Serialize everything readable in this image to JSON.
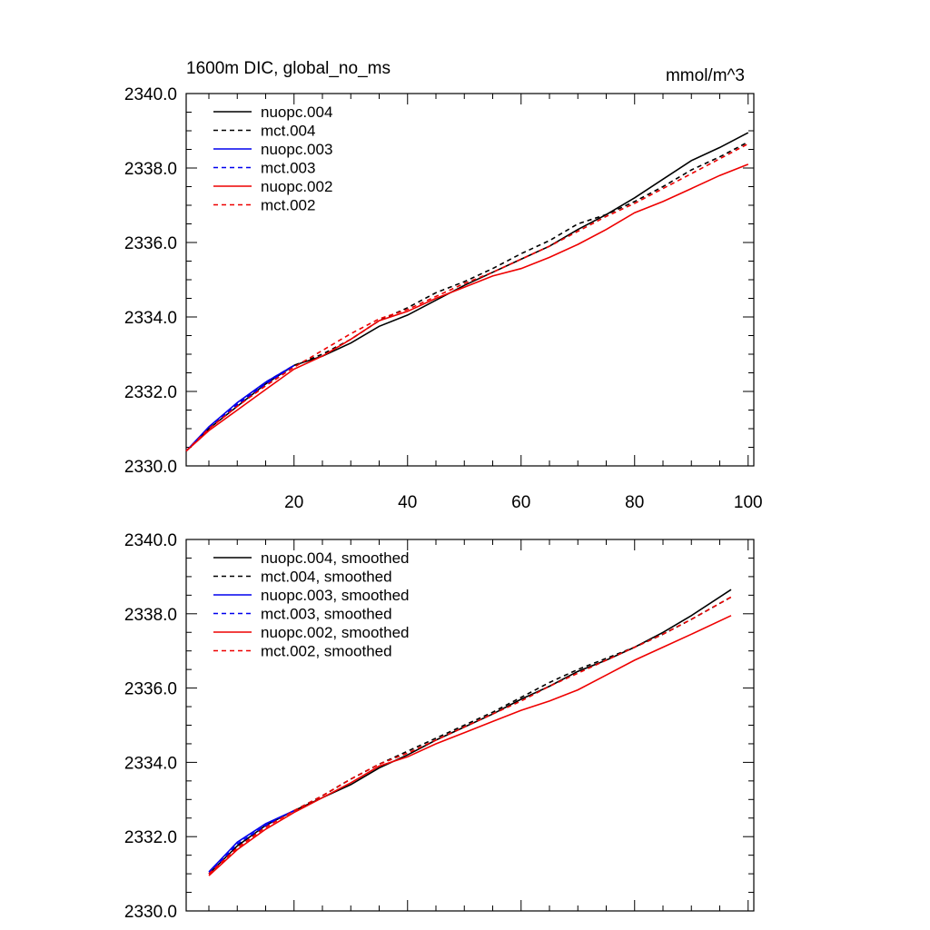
{
  "chart_data": [
    {
      "type": "line",
      "title": "1600m DIC, global_no_ms",
      "units": "mmol/m^3",
      "xlim": [
        1,
        101
      ],
      "ylim": [
        2330,
        2340
      ],
      "xticks": [
        20,
        40,
        60,
        80,
        100
      ],
      "xtick_labels": [
        "20",
        "40",
        "60",
        "80",
        "100"
      ],
      "yticks": [
        2330,
        2332,
        2334,
        2336,
        2338,
        2340
      ],
      "ytick_labels": [
        "2330.0",
        "2332.0",
        "2334.0",
        "2336.0",
        "2338.0",
        "2340.0"
      ],
      "legend_position": "top-left",
      "series": [
        {
          "name": "nuopc.004",
          "color": "#000000",
          "dash": "solid",
          "x": [
            1,
            5,
            10,
            15,
            20,
            25,
            30,
            35,
            40,
            45,
            50,
            55,
            60,
            65,
            70,
            75,
            80,
            85,
            90,
            95,
            100
          ],
          "y": [
            2330.4,
            2331.0,
            2331.6,
            2332.2,
            2332.7,
            2332.95,
            2333.3,
            2333.75,
            2334.05,
            2334.45,
            2334.85,
            2335.2,
            2335.55,
            2335.9,
            2336.35,
            2336.75,
            2337.2,
            2337.7,
            2338.2,
            2338.55,
            2338.95
          ]
        },
        {
          "name": "mct.004",
          "color": "#000000",
          "dash": "dashed",
          "x": [
            1,
            5,
            10,
            15,
            20,
            25,
            30,
            35,
            40,
            45,
            50,
            55,
            60,
            65,
            70,
            75,
            80,
            85,
            90,
            95,
            100
          ],
          "y": [
            2330.4,
            2331.0,
            2331.65,
            2332.25,
            2332.7,
            2333.0,
            2333.4,
            2333.9,
            2334.25,
            2334.65,
            2334.95,
            2335.3,
            2335.7,
            2336.05,
            2336.5,
            2336.75,
            2337.1,
            2337.5,
            2337.95,
            2338.3,
            2338.7
          ]
        },
        {
          "name": "nuopc.003",
          "color": "#0000ee",
          "dash": "solid",
          "x": [
            1,
            5,
            10,
            15,
            20
          ],
          "y": [
            2330.4,
            2331.05,
            2331.7,
            2332.25,
            2332.7
          ]
        },
        {
          "name": "mct.003",
          "color": "#0000ee",
          "dash": "dashed",
          "x": [
            1,
            5,
            10,
            15,
            20
          ],
          "y": [
            2330.4,
            2331.0,
            2331.65,
            2332.2,
            2332.7
          ]
        },
        {
          "name": "nuopc.002",
          "color": "#ee0000",
          "dash": "solid",
          "x": [
            1,
            5,
            10,
            15,
            20,
            25,
            30,
            35,
            40,
            45,
            50,
            55,
            60,
            65,
            70,
            75,
            80,
            85,
            90,
            95,
            100
          ],
          "y": [
            2330.4,
            2330.95,
            2331.5,
            2332.05,
            2332.6,
            2332.95,
            2333.4,
            2333.9,
            2334.15,
            2334.5,
            2334.8,
            2335.1,
            2335.3,
            2335.6,
            2335.95,
            2336.35,
            2336.8,
            2337.1,
            2337.45,
            2337.8,
            2338.1
          ]
        },
        {
          "name": "mct.002",
          "color": "#ee0000",
          "dash": "dashed",
          "x": [
            1,
            5,
            10,
            15,
            20,
            25,
            30,
            35,
            40,
            45,
            50,
            55,
            60,
            65,
            70,
            75,
            80,
            85,
            90,
            95,
            100
          ],
          "y": [
            2330.4,
            2331.0,
            2331.6,
            2332.15,
            2332.65,
            2333.1,
            2333.55,
            2333.95,
            2334.2,
            2334.55,
            2334.9,
            2335.2,
            2335.55,
            2335.9,
            2336.3,
            2336.7,
            2337.05,
            2337.45,
            2337.85,
            2338.25,
            2338.65
          ]
        }
      ]
    },
    {
      "type": "line",
      "xlim": [
        1,
        101
      ],
      "ylim": [
        2330,
        2340
      ],
      "xticks": [
        20,
        40,
        60,
        80,
        100
      ],
      "xtick_labels": [],
      "yticks": [
        2330,
        2332,
        2334,
        2336,
        2338,
        2340
      ],
      "ytick_labels": [
        "2330.0",
        "2332.0",
        "2334.0",
        "2336.0",
        "2338.0",
        "2340.0"
      ],
      "legend_position": "top-left",
      "series": [
        {
          "name": "nuopc.004, smoothed",
          "color": "#000000",
          "dash": "solid",
          "x": [
            5,
            10,
            15,
            20,
            25,
            30,
            35,
            40,
            45,
            50,
            55,
            60,
            65,
            70,
            75,
            80,
            85,
            90,
            97
          ],
          "y": [
            2331.0,
            2331.75,
            2332.3,
            2332.7,
            2333.05,
            2333.4,
            2333.85,
            2334.2,
            2334.6,
            2334.95,
            2335.3,
            2335.7,
            2336.05,
            2336.45,
            2336.75,
            2337.1,
            2337.5,
            2337.95,
            2338.65
          ]
        },
        {
          "name": "mct.004, smoothed",
          "color": "#000000",
          "dash": "dashed",
          "x": [
            5,
            10,
            15,
            20,
            25,
            30,
            35,
            40,
            45,
            50,
            55,
            60,
            65,
            70,
            75,
            80,
            85,
            90,
            97
          ],
          "y": [
            2331.0,
            2331.75,
            2332.3,
            2332.7,
            2333.1,
            2333.55,
            2333.95,
            2334.3,
            2334.65,
            2335.0,
            2335.35,
            2335.75,
            2336.15,
            2336.5,
            2336.8,
            2337.1,
            2337.45,
            2337.85,
            2338.45
          ]
        },
        {
          "name": "nuopc.003, smoothed",
          "color": "#0000ee",
          "dash": "solid",
          "x": [
            5,
            10,
            15,
            20
          ],
          "y": [
            2331.05,
            2331.85,
            2332.35,
            2332.7
          ]
        },
        {
          "name": "mct.003, smoothed",
          "color": "#0000ee",
          "dash": "dashed",
          "x": [
            5,
            10,
            15,
            20
          ],
          "y": [
            2331.0,
            2331.8,
            2332.3,
            2332.7
          ]
        },
        {
          "name": "nuopc.002, smoothed",
          "color": "#ee0000",
          "dash": "solid",
          "x": [
            5,
            10,
            15,
            20,
            25,
            30,
            35,
            40,
            45,
            50,
            55,
            60,
            65,
            70,
            75,
            80,
            85,
            90,
            97
          ],
          "y": [
            2330.95,
            2331.65,
            2332.2,
            2332.65,
            2333.05,
            2333.45,
            2333.9,
            2334.15,
            2334.5,
            2334.8,
            2335.1,
            2335.4,
            2335.65,
            2335.95,
            2336.35,
            2336.75,
            2337.1,
            2337.45,
            2337.95
          ]
        },
        {
          "name": "mct.002, smoothed",
          "color": "#ee0000",
          "dash": "dashed",
          "x": [
            5,
            10,
            15,
            20,
            25,
            30,
            35,
            40,
            45,
            50,
            55,
            60,
            65,
            70,
            75,
            80,
            85,
            90,
            97
          ],
          "y": [
            2331.0,
            2331.7,
            2332.25,
            2332.7,
            2333.1,
            2333.55,
            2333.95,
            2334.25,
            2334.6,
            2334.95,
            2335.3,
            2335.65,
            2336.05,
            2336.4,
            2336.75,
            2337.1,
            2337.45,
            2337.85,
            2338.45
          ]
        }
      ]
    }
  ]
}
